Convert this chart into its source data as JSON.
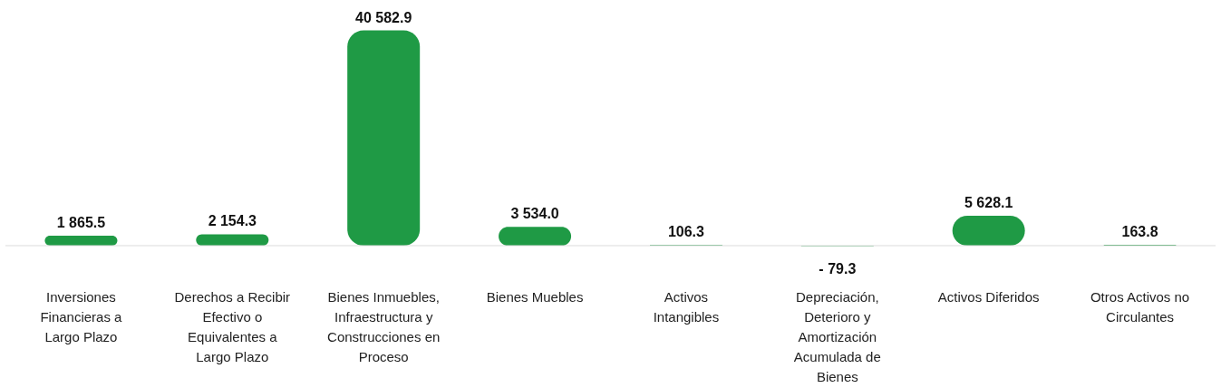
{
  "chart_data": {
    "type": "bar",
    "categories": [
      "Inversiones Financieras a Largo Plazo",
      "Derechos a Recibir Efectivo o Equivalentes a Largo Plazo",
      "Bienes Inmuebles, Infraestructura y Construcciones en Proceso",
      "Bienes Muebles",
      "Activos Intangibles",
      "Depreciación, Deterioro y Amortización Acumulada de Bienes",
      "Activos Diferidos",
      "Otros Activos no Circulantes"
    ],
    "values": [
      1865.5,
      2154.3,
      40582.9,
      3534.0,
      106.3,
      -79.3,
      5628.1,
      163.8
    ],
    "value_labels": [
      "1 865.5",
      "2 154.3",
      "40 582.9",
      "3 534.0",
      "106.3",
      "- 79.3",
      "5 628.1",
      "163.8"
    ],
    "color": "#1f9a45"
  }
}
